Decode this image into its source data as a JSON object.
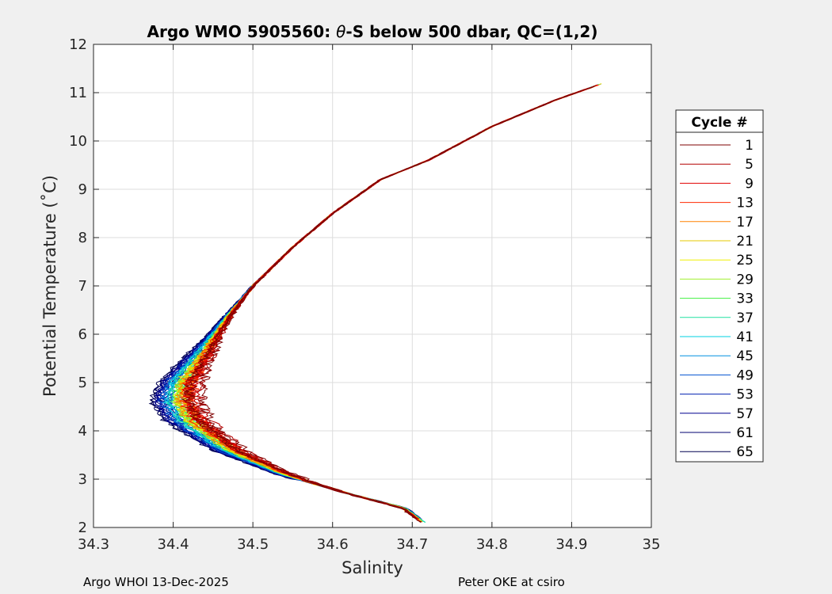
{
  "chart_data": {
    "type": "line",
    "title_prefix": "Argo WMO 5905560: ",
    "title_theta": "θ",
    "title_suffix": "-S below 500 dbar,  QC=(1,2)",
    "xlabel": "Salinity",
    "ylabel": "Potential Temperature (˚C)",
    "xlim": [
      34.3,
      35
    ],
    "ylim": [
      2,
      12
    ],
    "xticks": [
      "34.3",
      "34.4",
      "34.5",
      "34.6",
      "34.7",
      "34.8",
      "34.9",
      "35"
    ],
    "yticks": [
      "2",
      "3",
      "4",
      "5",
      "6",
      "7",
      "8",
      "9",
      "10",
      "11",
      "12"
    ],
    "grid": true,
    "legend_position": "outside-right",
    "legend_title": "Cycle #",
    "legend": [
      {
        "label": "1",
        "color": "#7f0000"
      },
      {
        "label": "5",
        "color": "#b40000"
      },
      {
        "label": "9",
        "color": "#e10000"
      },
      {
        "label": "13",
        "color": "#ff2a00"
      },
      {
        "label": "17",
        "color": "#ff8000"
      },
      {
        "label": "21",
        "color": "#e6c800"
      },
      {
        "label": "25",
        "color": "#f0f000"
      },
      {
        "label": "29",
        "color": "#a0f030"
      },
      {
        "label": "33",
        "color": "#40f040"
      },
      {
        "label": "37",
        "color": "#20e0a0"
      },
      {
        "label": "41",
        "color": "#00d0e0"
      },
      {
        "label": "45",
        "color": "#0090e0"
      },
      {
        "label": "49",
        "color": "#0050d0"
      },
      {
        "label": "53",
        "color": "#0020b0"
      },
      {
        "label": "57",
        "color": "#000090"
      },
      {
        "label": "61",
        "color": "#000070"
      },
      {
        "label": "65",
        "color": "#000050"
      }
    ],
    "profile_shape": {
      "salinity": [
        34.715,
        34.69,
        34.62,
        34.54,
        34.47,
        34.42,
        34.405,
        34.41,
        34.44,
        34.47,
        34.5,
        34.55,
        34.6,
        34.66,
        34.72,
        34.8,
        34.88,
        34.94
      ],
      "theta": [
        2.1,
        2.4,
        2.7,
        3.1,
        3.6,
        4.2,
        4.6,
        5.0,
        5.7,
        6.4,
        7.0,
        7.8,
        8.5,
        9.2,
        9.6,
        10.3,
        10.85,
        11.2
      ]
    }
  },
  "footer": {
    "left": "Argo WHOI 13-Dec-2025",
    "right": "Peter OKE at csiro"
  }
}
